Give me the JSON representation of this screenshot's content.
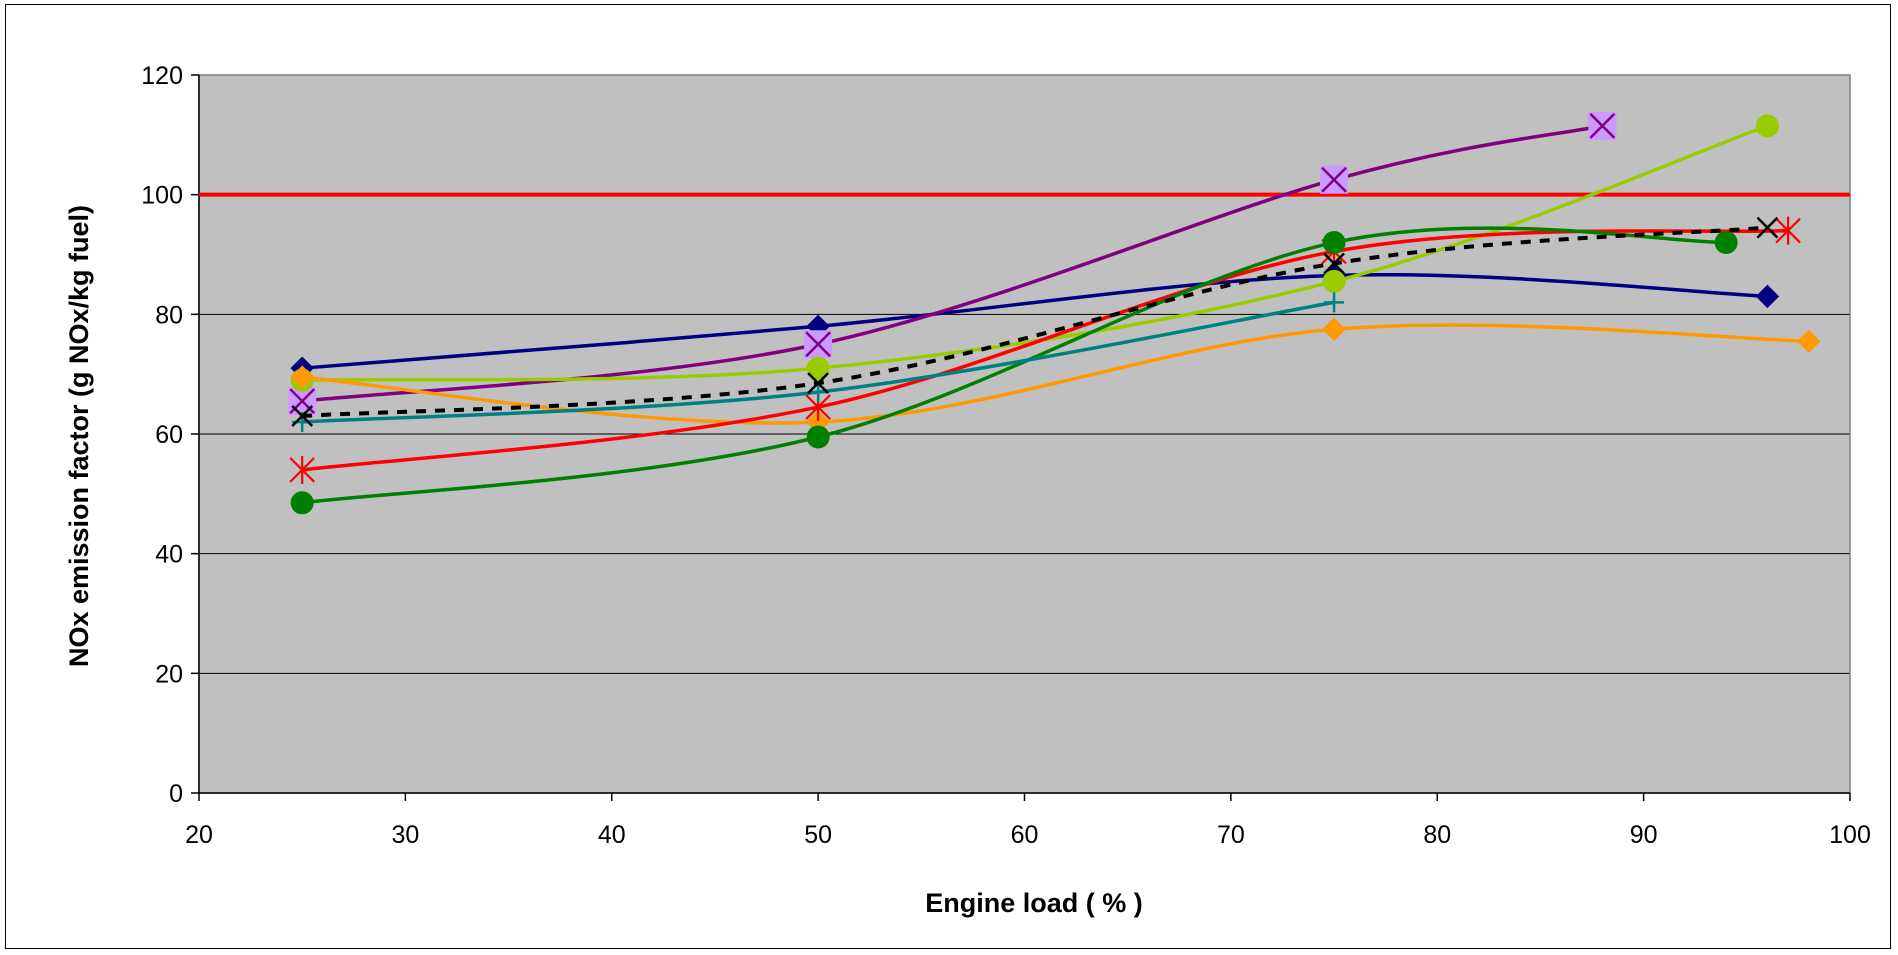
{
  "chart_data": {
    "type": "line",
    "title": "",
    "xlabel": "Engine load ( % )",
    "ylabel": "NOx emission factor (g NOx/kg fuel)",
    "xlim": [
      20,
      100
    ],
    "ylim": [
      0,
      120
    ],
    "x_ticks": [
      20,
      30,
      40,
      50,
      60,
      70,
      80,
      90,
      100
    ],
    "y_ticks": [
      0,
      20,
      40,
      60,
      80,
      100,
      120
    ],
    "grid": "horizontal",
    "legend": "none",
    "plot_background": "#c0c0c0",
    "reference_line": {
      "y": 100,
      "color": "#ff0000"
    },
    "series": [
      {
        "color": "#000080",
        "marker": "diamond",
        "dashed": false,
        "x": [
          25,
          50,
          75,
          96
        ],
        "y": [
          71,
          78,
          86.5,
          83
        ]
      },
      {
        "color": "#800080",
        "marker": "square-x",
        "marker_fill": "#cc99ff",
        "dashed": false,
        "x": [
          25,
          50,
          75,
          88
        ],
        "y": [
          65.5,
          75,
          102.5,
          111.5
        ]
      },
      {
        "color": "#99cc00",
        "marker": "circle",
        "dashed": false,
        "x": [
          25,
          50,
          75,
          96
        ],
        "y": [
          69,
          71,
          85.5,
          111.5
        ]
      },
      {
        "color": "#ff9900",
        "marker": "diamond",
        "dashed": false,
        "x": [
          25,
          50,
          75,
          98
        ],
        "y": [
          69.5,
          62,
          77.5,
          75.5
        ]
      },
      {
        "color": "#ff0000",
        "marker": "asterisk",
        "dashed": false,
        "x": [
          25,
          50,
          75,
          97
        ],
        "y": [
          54,
          64.5,
          90.5,
          94
        ]
      },
      {
        "color": "#008000",
        "marker": "circle",
        "dashed": false,
        "x": [
          25,
          50,
          75,
          94
        ],
        "y": [
          48.5,
          59.5,
          92,
          92
        ]
      },
      {
        "color": "#008080",
        "marker": "plus",
        "dashed": false,
        "x": [
          25,
          50,
          75
        ],
        "y": [
          62,
          67,
          82
        ]
      },
      {
        "color": "#000000",
        "marker": "x",
        "dashed": true,
        "x": [
          25,
          50,
          75,
          96
        ],
        "y": [
          63,
          68.5,
          88.5,
          94.5
        ]
      }
    ]
  }
}
